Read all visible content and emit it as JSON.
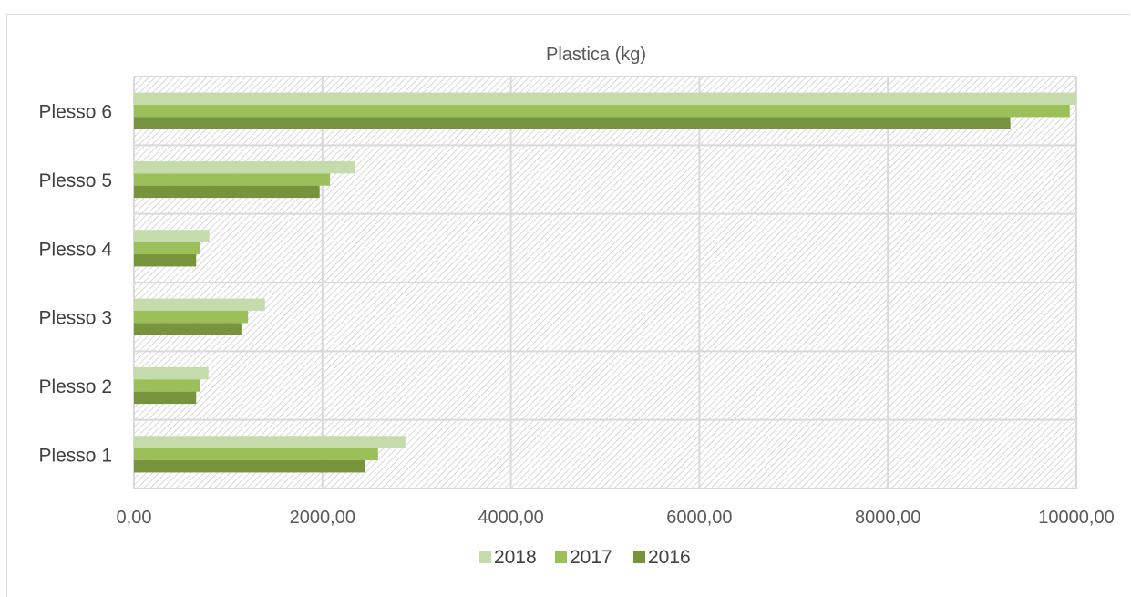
{
  "chart_data": {
    "type": "bar",
    "orientation": "horizontal",
    "title": "Plastica (kg)",
    "categories": [
      "Plesso 1",
      "Plesso 2",
      "Plesso 3",
      "Plesso 4",
      "Plesso 5",
      "Plesso 6"
    ],
    "series": [
      {
        "name": "2018",
        "color": "#c5dbab",
        "values": [
          2880,
          790,
          1390,
          800,
          2350,
          10000
        ]
      },
      {
        "name": "2017",
        "color": "#9bc05a",
        "values": [
          2590,
          700,
          1210,
          700,
          2080,
          9930
        ]
      },
      {
        "name": "2016",
        "color": "#77933c",
        "values": [
          2450,
          660,
          1140,
          660,
          1970,
          9300
        ]
      }
    ],
    "xlim": [
      0,
      10000
    ],
    "xticks": [
      "0,00",
      "2000,00",
      "4000,00",
      "6000,00",
      "8000,00",
      "10000,00"
    ],
    "grid": true,
    "plot_background": "diagonal hatch",
    "legend_position": "bottom"
  }
}
